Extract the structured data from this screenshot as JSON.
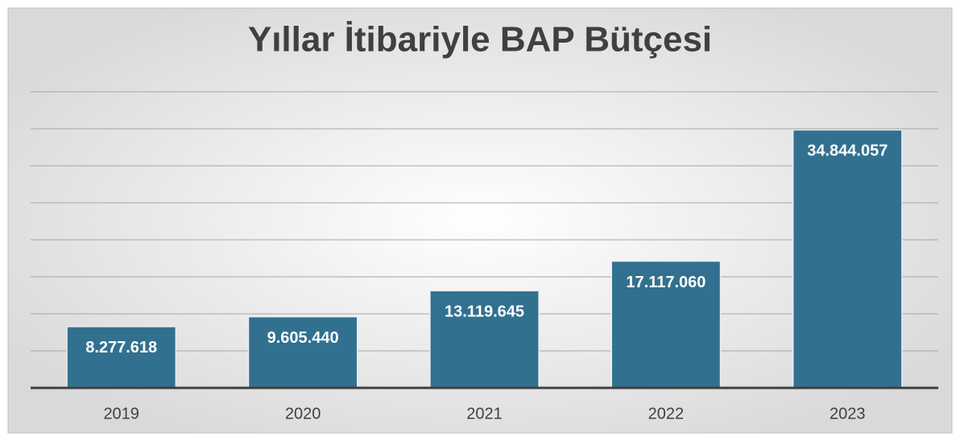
{
  "chart_data": {
    "type": "bar",
    "title": "Yıllar İtibariyle BAP Bütçesi",
    "categories": [
      "2019",
      "2020",
      "2021",
      "2022",
      "2023"
    ],
    "values": [
      8277618,
      9605440,
      13119645,
      17117060,
      34844057
    ],
    "value_labels": [
      "8.277.618",
      "9.605.440",
      "13.119.645",
      "17.117.060",
      "34.844.057"
    ],
    "color": "#31718f",
    "ylim": [
      0,
      40000000
    ],
    "yticks": [
      0,
      5000000,
      10000000,
      15000000,
      20000000,
      25000000,
      30000000,
      35000000,
      40000000
    ],
    "grid": true
  }
}
